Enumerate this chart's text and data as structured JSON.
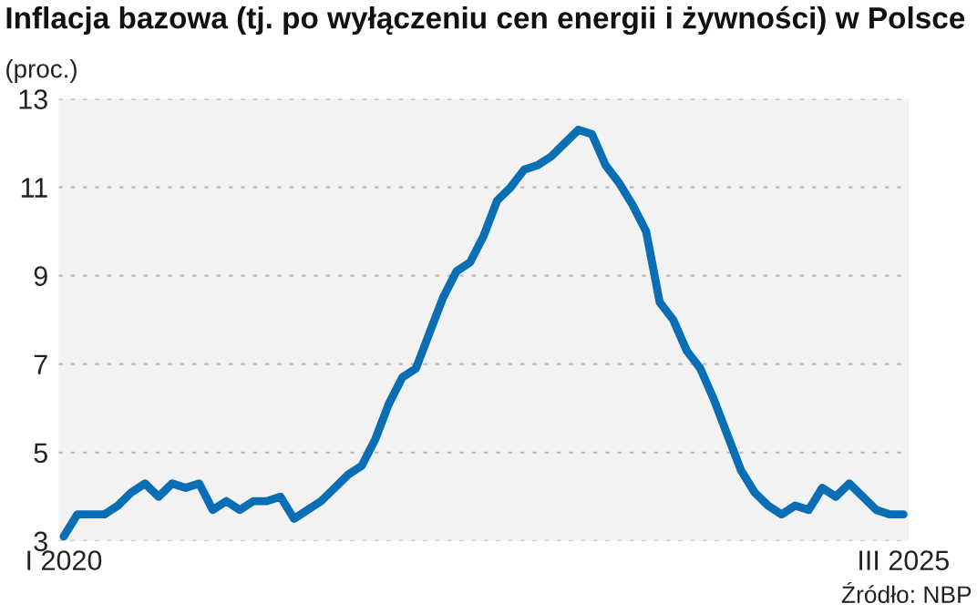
{
  "chart_data": {
    "type": "line",
    "title": "Inflacja bazowa (tj. po wyłączeniu cen energii i żywności) w Polsce",
    "subtitle": "(proc.)",
    "categories": [
      "I 2020",
      null,
      null,
      null,
      null,
      null,
      null,
      null,
      null,
      null,
      null,
      null,
      null,
      null,
      null,
      null,
      null,
      null,
      null,
      null,
      null,
      null,
      null,
      null,
      null,
      null,
      null,
      null,
      null,
      null,
      null,
      null,
      null,
      null,
      null,
      null,
      null,
      null,
      null,
      null,
      null,
      null,
      null,
      null,
      null,
      null,
      null,
      null,
      null,
      null,
      null,
      null,
      null,
      null,
      null,
      null,
      null,
      null,
      null,
      null,
      null,
      null,
      "III 2025"
    ],
    "series": [
      {
        "color": "#0a6eb4",
        "values": [
          3.1,
          3.6,
          3.6,
          3.6,
          3.8,
          4.1,
          4.3,
          4.0,
          4.3,
          4.2,
          4.3,
          3.7,
          3.9,
          3.7,
          3.9,
          3.9,
          4.0,
          3.5,
          3.7,
          3.9,
          4.2,
          4.5,
          4.7,
          5.3,
          6.1,
          6.7,
          6.9,
          7.7,
          8.5,
          9.1,
          9.3,
          9.9,
          10.7,
          11.0,
          11.4,
          11.5,
          11.7,
          12.0,
          12.3,
          12.2,
          11.5,
          11.1,
          10.6,
          10.0,
          8.4,
          8.0,
          7.3,
          6.9,
          6.2,
          5.4,
          4.6,
          4.1,
          3.8,
          3.6,
          3.8,
          3.7,
          4.2,
          4.0,
          4.3,
          4.0,
          3.7,
          3.6,
          3.6
        ]
      }
    ],
    "ylim": [
      3,
      13
    ],
    "yticks": [
      3,
      5,
      7,
      9,
      11,
      13
    ],
    "grid": "y",
    "annotations": [
      "Źródło: NBP"
    ]
  }
}
